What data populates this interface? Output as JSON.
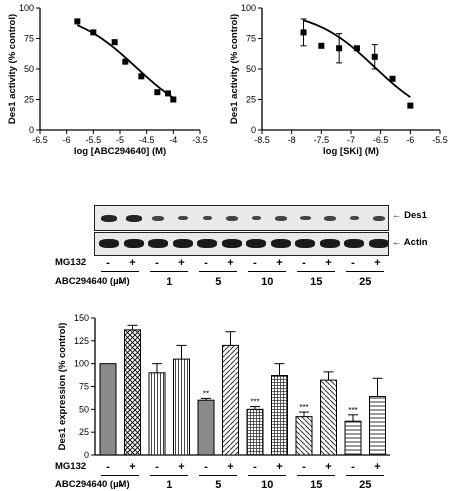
{
  "chart_data": [
    {
      "type": "scatter",
      "panel": "dose-response-abc294640",
      "xlabel": "log [ABC294640] (M)",
      "ylabel": "Des1 activity (% control)",
      "xlim": [
        -6.5,
        -3.5
      ],
      "ylim": [
        0,
        100
      ],
      "xticks": [
        "-6.5",
        "-6",
        "-5.5",
        "-5",
        "-4.5",
        "-4",
        "-3.5"
      ],
      "yticks": [
        "0",
        "25",
        "50",
        "75",
        "100"
      ],
      "points": [
        {
          "x": -5.8,
          "y": 89
        },
        {
          "x": -5.5,
          "y": 80
        },
        {
          "x": -5.1,
          "y": 72
        },
        {
          "x": -4.9,
          "y": 56
        },
        {
          "x": -4.6,
          "y": 44
        },
        {
          "x": -4.3,
          "y": 31
        },
        {
          "x": -4.1,
          "y": 30
        },
        {
          "x": -4.0,
          "y": 25
        }
      ],
      "curve": {
        "top": 98,
        "bottom": 5,
        "logIC50": -4.7,
        "hill": 0.75
      }
    },
    {
      "type": "scatter",
      "panel": "dose-response-ski",
      "xlabel": "log [SKi] (M)",
      "ylabel": "Des1 activity (% control)",
      "xlim": [
        -8.5,
        -5.5
      ],
      "ylim": [
        0,
        100
      ],
      "xticks": [
        "-8.5",
        "-8",
        "-7.5",
        "-7",
        "-6.5",
        "-6",
        "-5.5"
      ],
      "yticks": [
        "0",
        "25",
        "50",
        "75",
        "100"
      ],
      "points": [
        {
          "x": -7.8,
          "y": 80,
          "err": 11
        },
        {
          "x": -7.5,
          "y": 69
        },
        {
          "x": -7.2,
          "y": 67,
          "err": 12
        },
        {
          "x": -6.9,
          "y": 67
        },
        {
          "x": -6.6,
          "y": 60,
          "err": 10
        },
        {
          "x": -6.3,
          "y": 42
        },
        {
          "x": -6.0,
          "y": 20
        }
      ],
      "curve": {
        "top": 98,
        "bottom": 5,
        "logIC50": -6.6,
        "hill": 0.85
      }
    },
    {
      "type": "bar",
      "panel": "des1-expression",
      "ylabel": "Des1 expression (% control)",
      "ylim": [
        0,
        150
      ],
      "yticks": [
        "0",
        "25",
        "50",
        "75",
        "100",
        "125",
        "150"
      ],
      "values": [
        100,
        137,
        90,
        105,
        60,
        120,
        50,
        87,
        42,
        82,
        37,
        64
      ],
      "errors": [
        0,
        5,
        10,
        15,
        2,
        15,
        3,
        13,
        5,
        9,
        7,
        20
      ],
      "significance": [
        "",
        "",
        "",
        "",
        "**",
        "",
        "***",
        "",
        "***",
        "",
        "***",
        ""
      ]
    }
  ],
  "blot": {
    "labels": [
      "Des1",
      "Actin"
    ],
    "arrow": "←"
  },
  "treatment_table": {
    "mg132_label": "MG132",
    "abc_label": "ABC294640 (µM)",
    "mg132_signs": [
      "-",
      "+",
      "-",
      "+",
      "-",
      "+",
      "-",
      "+",
      "-",
      "+",
      "-",
      "+"
    ],
    "doses": [
      "-",
      "1",
      "5",
      "10",
      "15",
      "25"
    ]
  }
}
